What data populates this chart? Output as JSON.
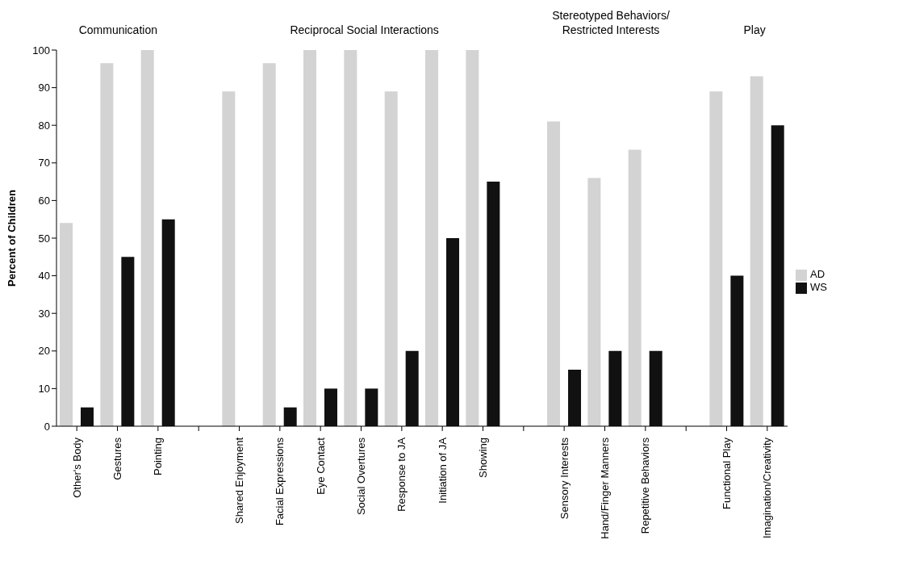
{
  "chart_data": {
    "type": "bar",
    "ylabel": "Percent of Children",
    "categories": [
      "Other's Body",
      "Gestures",
      "Pointing",
      null,
      "Shared Enjoyment",
      "Facial Expressions",
      "Eye Contact",
      "Social Overtures",
      "Response to JA",
      "Initiation of JA",
      "Showing",
      null,
      "Sensory Interests",
      "Hand/Finger Manners",
      "Repetitive Behaviors",
      null,
      "Functional Play",
      "Imagination/Creativity"
    ],
    "series": [
      {
        "name": "AD",
        "color": "#d3d3d3",
        "values": [
          54,
          96.5,
          100,
          null,
          89,
          96.5,
          100,
          100,
          89,
          100,
          100,
          null,
          81,
          66,
          73.5,
          null,
          89,
          93
        ]
      },
      {
        "name": "WS",
        "color": "#111111",
        "values": [
          5,
          45,
          55,
          null,
          0,
          5,
          10,
          10,
          20,
          50,
          65,
          null,
          15,
          20,
          20,
          null,
          40,
          80
        ]
      }
    ],
    "annotations": [
      "Communication",
      "Reciprocal Social Interactions",
      "Stereotyped Behaviors/\nRestricted Interests",
      "Play"
    ],
    "ylim": [
      0,
      100
    ],
    "yticks": [
      0,
      10,
      20,
      30,
      40,
      50,
      60,
      70,
      80,
      90,
      100
    ],
    "legend": "right"
  }
}
